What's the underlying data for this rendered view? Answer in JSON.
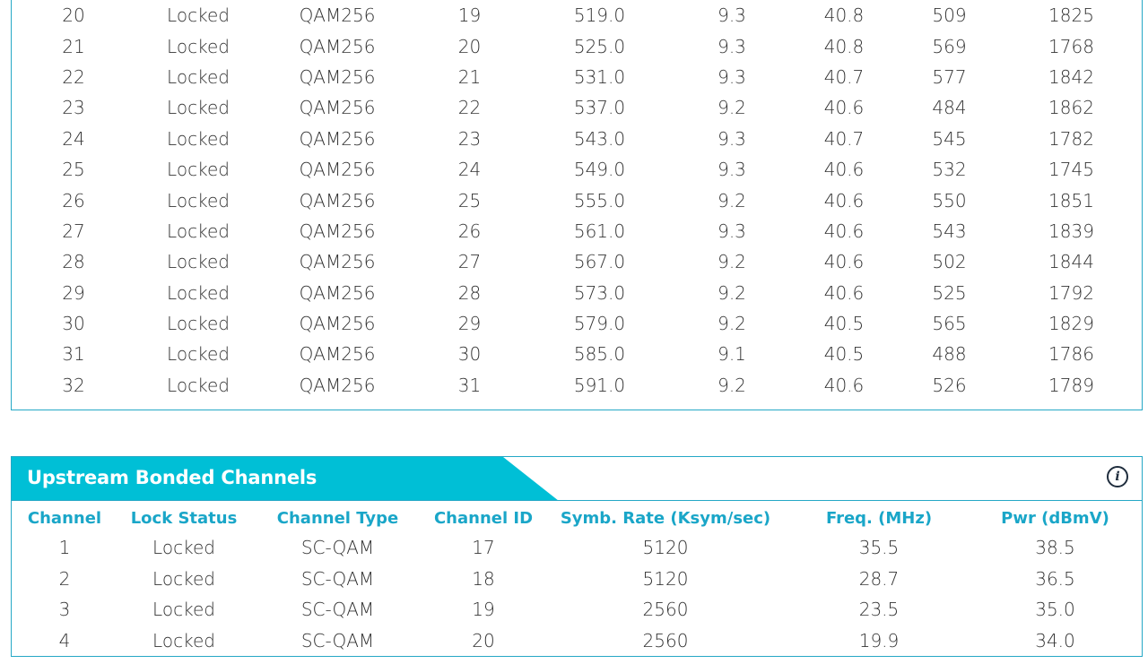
{
  "downstream": {
    "rows": [
      [
        "20",
        "Locked",
        "QAM256",
        "19",
        "519.0",
        "9.3",
        "40.8",
        "509",
        "1825"
      ],
      [
        "21",
        "Locked",
        "QAM256",
        "20",
        "525.0",
        "9.3",
        "40.8",
        "569",
        "1768"
      ],
      [
        "22",
        "Locked",
        "QAM256",
        "21",
        "531.0",
        "9.3",
        "40.7",
        "577",
        "1842"
      ],
      [
        "23",
        "Locked",
        "QAM256",
        "22",
        "537.0",
        "9.2",
        "40.6",
        "484",
        "1862"
      ],
      [
        "24",
        "Locked",
        "QAM256",
        "23",
        "543.0",
        "9.3",
        "40.7",
        "545",
        "1782"
      ],
      [
        "25",
        "Locked",
        "QAM256",
        "24",
        "549.0",
        "9.3",
        "40.6",
        "532",
        "1745"
      ],
      [
        "26",
        "Locked",
        "QAM256",
        "25",
        "555.0",
        "9.2",
        "40.6",
        "550",
        "1851"
      ],
      [
        "27",
        "Locked",
        "QAM256",
        "26",
        "561.0",
        "9.3",
        "40.6",
        "543",
        "1839"
      ],
      [
        "28",
        "Locked",
        "QAM256",
        "27",
        "567.0",
        "9.2",
        "40.6",
        "502",
        "1844"
      ],
      [
        "29",
        "Locked",
        "QAM256",
        "28",
        "573.0",
        "9.2",
        "40.6",
        "525",
        "1792"
      ],
      [
        "30",
        "Locked",
        "QAM256",
        "29",
        "579.0",
        "9.2",
        "40.5",
        "565",
        "1829"
      ],
      [
        "31",
        "Locked",
        "QAM256",
        "30",
        "585.0",
        "9.1",
        "40.5",
        "488",
        "1786"
      ],
      [
        "32",
        "Locked",
        "QAM256",
        "31",
        "591.0",
        "9.2",
        "40.6",
        "526",
        "1789"
      ]
    ]
  },
  "upstream": {
    "title": "Upstream Bonded Channels",
    "info_icon": "info-icon",
    "headers": [
      "Channel",
      "Lock Status",
      "Channel Type",
      "Channel ID",
      "Symb. Rate (Ksym/sec)",
      "Freq. (MHz)",
      "Pwr (dBmV)"
    ],
    "rows": [
      [
        "1",
        "Locked",
        "SC-QAM",
        "17",
        "5120",
        "35.5",
        "38.5"
      ],
      [
        "2",
        "Locked",
        "SC-QAM",
        "18",
        "5120",
        "28.7",
        "36.5"
      ],
      [
        "3",
        "Locked",
        "SC-QAM",
        "19",
        "2560",
        "23.5",
        "35.0"
      ],
      [
        "4",
        "Locked",
        "SC-QAM",
        "20",
        "2560",
        "19.9",
        "34.0"
      ]
    ]
  },
  "colors": {
    "accent": "#00bfd6",
    "border": "#25a8c6",
    "header_text": "#1aa6c8"
  }
}
